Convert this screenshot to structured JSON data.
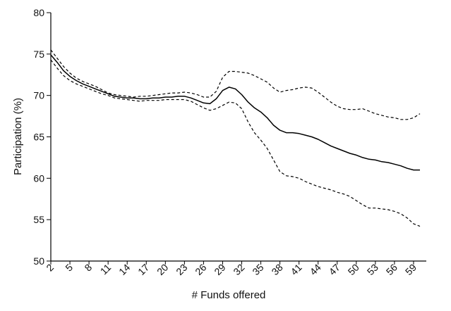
{
  "chart_data": {
    "type": "line",
    "xlabel": "# Funds offered",
    "ylabel": "Participation (%)",
    "xlim": [
      2,
      61
    ],
    "ylim": [
      50,
      80
    ],
    "x_ticks": [
      2,
      5,
      8,
      11,
      14,
      17,
      20,
      23,
      26,
      29,
      32,
      35,
      38,
      41,
      44,
      47,
      50,
      53,
      56,
      59
    ],
    "y_ticks": [
      50,
      55,
      60,
      65,
      70,
      75,
      80
    ],
    "x": [
      2,
      3,
      4,
      5,
      6,
      7,
      8,
      9,
      10,
      11,
      12,
      13,
      14,
      15,
      16,
      17,
      18,
      19,
      20,
      21,
      22,
      23,
      24,
      25,
      26,
      27,
      28,
      29,
      30,
      31,
      32,
      33,
      34,
      35,
      36,
      37,
      38,
      39,
      40,
      41,
      42,
      43,
      44,
      45,
      46,
      47,
      48,
      49,
      50,
      51,
      52,
      53,
      54,
      55,
      56,
      57,
      58,
      59,
      60
    ],
    "series": [
      {
        "style": "solid",
        "values": [
          74.9,
          74.0,
          73.0,
          72.3,
          71.8,
          71.4,
          71.1,
          70.8,
          70.5,
          70.2,
          69.9,
          69.8,
          69.7,
          69.7,
          69.6,
          69.6,
          69.7,
          69.7,
          69.8,
          69.8,
          69.9,
          69.9,
          69.7,
          69.4,
          69.1,
          69.0,
          69.6,
          70.6,
          71.0,
          70.8,
          70.1,
          69.2,
          68.5,
          68.0,
          67.3,
          66.4,
          65.8,
          65.5,
          65.5,
          65.4,
          65.2,
          65.0,
          64.7,
          64.3,
          63.9,
          63.6,
          63.3,
          63.0,
          62.8,
          62.5,
          62.3,
          62.2,
          62.0,
          61.9,
          61.7,
          61.5,
          61.2,
          61.0,
          61.0
        ]
      },
      {
        "style": "dashed",
        "values": [
          75.5,
          74.5,
          73.5,
          72.7,
          72.1,
          71.7,
          71.4,
          71.1,
          70.7,
          70.3,
          70.1,
          70.0,
          69.9,
          69.8,
          69.9,
          69.9,
          70.0,
          70.1,
          70.2,
          70.3,
          70.3,
          70.4,
          70.3,
          70.1,
          69.8,
          69.8,
          70.5,
          72.2,
          72.9,
          72.9,
          72.8,
          72.7,
          72.4,
          72.0,
          71.6,
          70.9,
          70.4,
          70.6,
          70.7,
          70.9,
          71.0,
          70.9,
          70.4,
          69.8,
          69.2,
          68.7,
          68.4,
          68.3,
          68.3,
          68.4,
          68.1,
          67.8,
          67.6,
          67.4,
          67.3,
          67.1,
          67.1,
          67.3,
          67.8
        ]
      },
      {
        "style": "dashed",
        "values": [
          74.3,
          73.3,
          72.4,
          71.8,
          71.4,
          71.1,
          70.8,
          70.5,
          70.2,
          70.0,
          69.7,
          69.6,
          69.5,
          69.4,
          69.3,
          69.4,
          69.4,
          69.4,
          69.5,
          69.5,
          69.5,
          69.5,
          69.3,
          68.9,
          68.5,
          68.2,
          68.4,
          68.8,
          69.2,
          69.1,
          68.4,
          66.8,
          65.5,
          64.6,
          63.6,
          62.2,
          60.8,
          60.3,
          60.2,
          60.0,
          59.6,
          59.3,
          59.0,
          58.8,
          58.6,
          58.3,
          58.1,
          57.8,
          57.3,
          56.8,
          56.4,
          56.4,
          56.3,
          56.2,
          56.0,
          55.7,
          55.2,
          54.5,
          54.2
        ]
      }
    ]
  }
}
